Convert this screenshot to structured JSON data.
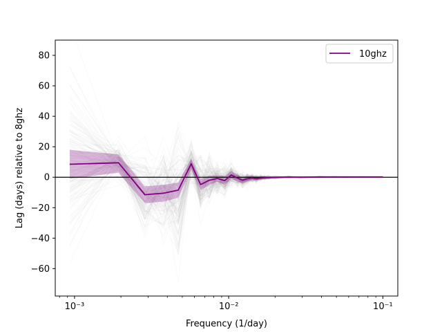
{
  "chart_data": {
    "type": "line",
    "title": "",
    "xlabel": "Frequency (1/day)",
    "ylabel": "Lag (days) relative to 8ghz",
    "xscale": "log",
    "xlim": [
      0.00075,
      0.125
    ],
    "ylim": [
      -78,
      90
    ],
    "yticks": [
      -60,
      -40,
      -20,
      0,
      20,
      40,
      60,
      80
    ],
    "ytick_labels": [
      "−60",
      "−40",
      "−20",
      "0",
      "20",
      "40",
      "60",
      "80"
    ],
    "xticks": [
      0.001,
      0.01,
      0.1
    ],
    "xtick_labels": [
      "10⁻³",
      "10⁻²",
      "10⁻¹"
    ],
    "reference_line": {
      "y": 0,
      "color": "#000000"
    },
    "legend": {
      "position": "top-right",
      "entries": [
        "10ghz"
      ]
    },
    "colors": {
      "series": "#800080",
      "band": "#800080",
      "samples": "#808080"
    },
    "series": [
      {
        "name": "10ghz",
        "x": [
          0.00093,
          0.00193,
          0.00286,
          0.00379,
          0.00471,
          0.00571,
          0.00657,
          0.0075,
          0.00843,
          0.00943,
          0.0104,
          0.0114,
          0.0123,
          0.0132,
          0.0142,
          0.0151,
          0.0161,
          0.0171,
          0.018,
          0.0199,
          0.0246,
          0.0293,
          0.0386,
          0.0479,
          0.0571,
          0.0757,
          0.1
        ],
        "values": [
          8.5,
          9.5,
          -11.5,
          -10.5,
          -8.5,
          8.8,
          -4.8,
          -2.0,
          -0.8,
          -2.2,
          1.5,
          -0.6,
          -2.0,
          -1.0,
          -0.4,
          -0.9,
          -0.5,
          -0.3,
          -0.2,
          -0.1,
          0.1,
          0.0,
          0.2,
          0.2,
          0.2,
          0.2,
          0.2
        ],
        "band_upper": [
          18.0,
          15.0,
          -6.0,
          -5.0,
          -3.5,
          12.0,
          -1.0,
          1.0,
          1.2,
          0.8,
          4.0,
          1.6,
          0.0,
          0.8,
          0.9,
          0.5,
          0.5,
          0.5,
          0.4,
          0.4,
          0.4,
          0.3,
          0.3,
          0.3,
          0.3,
          0.3,
          0.3
        ],
        "band_lower": [
          -1.0,
          3.0,
          -17.0,
          -16.0,
          -13.5,
          5.5,
          -8.5,
          -5.0,
          -3.0,
          -5.0,
          -1.0,
          -2.8,
          -4.0,
          -2.8,
          -1.7,
          -2.1,
          -1.5,
          -1.1,
          -0.8,
          -0.6,
          -0.2,
          -0.3,
          0.1,
          0.1,
          0.1,
          0.1,
          0.1
        ]
      }
    ],
    "samples_spread": [
      62,
      16,
      32,
      36,
      50,
      14,
      24,
      18,
      14,
      12,
      10,
      7,
      6,
      5,
      3.5,
      3,
      2.5,
      2,
      1.6,
      1.2,
      0.8,
      0.6,
      0.4,
      0.3,
      0.25,
      0.2,
      0.15
    ]
  }
}
